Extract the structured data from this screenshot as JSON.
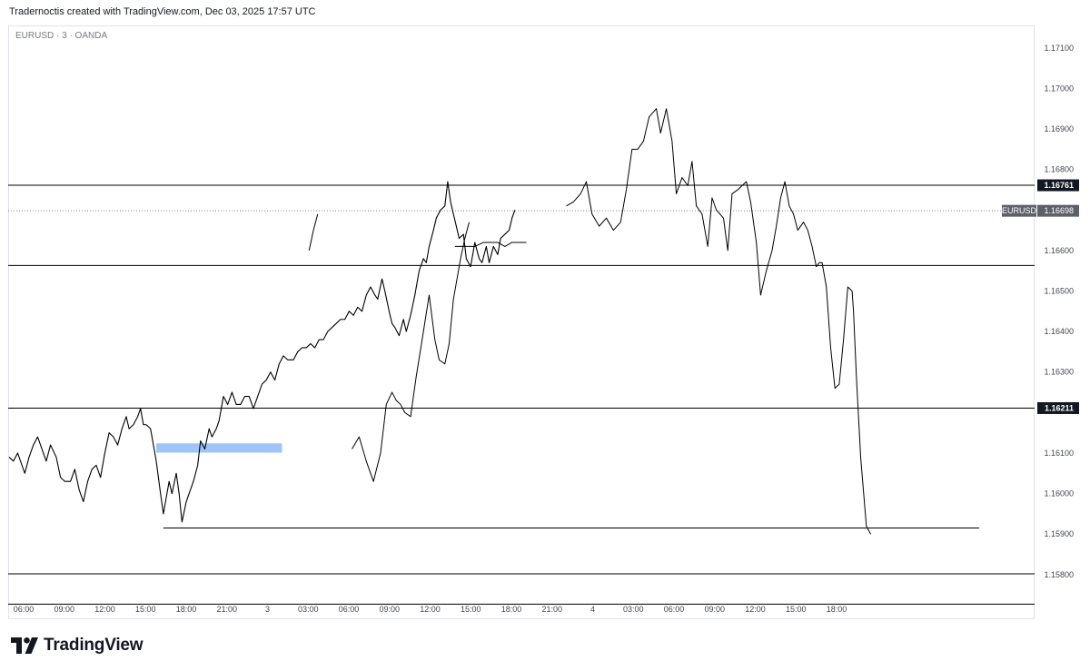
{
  "header": {
    "attribution": "Tradernoctis created with TradingView.com, Dec 03, 2025 17:57 UTC"
  },
  "symbol": {
    "label": "EURUSD · 3 · OANDA"
  },
  "brand": {
    "name": "TradingView"
  },
  "colors": {
    "price_line": "#000000",
    "level_line": "#000000",
    "highlight_box": "#9fc5f8",
    "label_bg": "#131722",
    "current_label_bg": "#5d606b"
  },
  "chart_data": {
    "type": "line",
    "title": "",
    "xlabel": "",
    "ylabel": "",
    "ylim": [
      1.1573,
      1.1713
    ],
    "grid": false,
    "x_tick_labels": [
      "06:00",
      "09:00",
      "12:00",
      "15:00",
      "18:00",
      "21:00",
      "3",
      "03:00",
      "06:00",
      "09:00",
      "12:00",
      "15:00",
      "18:00",
      "21:00",
      "4",
      "03:00",
      "06:00",
      "09:00",
      "12:00",
      "15:00",
      "18:00"
    ],
    "y_tick_labels": [
      "1.17100",
      "1.17000",
      "1.16900",
      "1.16800",
      "1.16600",
      "1.16500",
      "1.16400",
      "1.16300",
      "1.16100",
      "1.16000",
      "1.15900",
      "1.15800"
    ],
    "horizontal_levels": [
      {
        "value": 1.16761,
        "label": "1.16761"
      },
      {
        "value": 1.16563,
        "label": ""
      },
      {
        "value": 1.16211,
        "label": "1.16211"
      },
      {
        "value": 1.15802,
        "label": ""
      },
      {
        "value": 1.15727,
        "label": ""
      }
    ],
    "current_price": {
      "symbol": "EURUSD",
      "value": 1.16698,
      "label": "1.16698"
    },
    "price_series": [
      [
        0,
        1.1609
      ],
      [
        3,
        1.1608
      ],
      [
        6,
        1.161
      ],
      [
        9,
        1.1607
      ],
      [
        11,
        1.1605
      ],
      [
        14,
        1.1609
      ],
      [
        17,
        1.1612
      ],
      [
        20,
        1.1614
      ],
      [
        23,
        1.1611
      ],
      [
        26,
        1.1608
      ],
      [
        29,
        1.1612
      ],
      [
        33,
        1.1609
      ],
      [
        36,
        1.1604
      ],
      [
        39,
        1.1603
      ],
      [
        43,
        1.1603
      ],
      [
        46,
        1.1606
      ],
      [
        49,
        1.1601
      ],
      [
        52,
        1.1598
      ],
      [
        55,
        1.1603
      ],
      [
        58,
        1.1606
      ],
      [
        61,
        1.1607
      ],
      [
        64,
        1.1604
      ],
      [
        67,
        1.161
      ],
      [
        70,
        1.1615
      ],
      [
        73,
        1.1614
      ],
      [
        76,
        1.1612
      ],
      [
        79,
        1.1616
      ],
      [
        82,
        1.1619
      ],
      [
        84,
        1.1616
      ],
      [
        87,
        1.1617
      ],
      [
        90,
        1.1619
      ],
      [
        92,
        1.1621
      ],
      [
        94,
        1.1617
      ],
      [
        96,
        1.1617
      ],
      [
        99,
        1.1616
      ],
      [
        101,
        1.1612
      ],
      [
        103,
        1.1608
      ],
      [
        106,
        1.16
      ],
      [
        108,
        1.1595
      ],
      [
        110,
        1.1599
      ],
      [
        112,
        1.1603
      ],
      [
        114,
        1.16
      ],
      [
        117,
        1.1605
      ],
      [
        119,
        1.16
      ],
      [
        121,
        1.1593
      ],
      [
        124,
        1.1598
      ],
      [
        126,
        1.16
      ],
      [
        129,
        1.1603
      ],
      [
        132,
        1.1607
      ],
      [
        134,
        1.1613
      ],
      [
        137,
        1.1611
      ],
      [
        140,
        1.1616
      ],
      [
        142,
        1.1614
      ],
      [
        145,
        1.1616
      ],
      [
        147,
        1.1618
      ],
      [
        150,
        1.1624
      ],
      [
        153,
        1.1622
      ],
      [
        156,
        1.1625
      ],
      [
        159,
        1.1622
      ],
      [
        162,
        1.1622
      ],
      [
        165,
        1.1624
      ],
      [
        168,
        1.1624
      ],
      [
        171,
        1.1621
      ],
      [
        174,
        1.1624
      ],
      [
        177,
        1.1627
      ],
      [
        180,
        1.1628
      ],
      [
        183,
        1.163
      ],
      [
        186,
        1.1628
      ],
      [
        189,
        1.1632
      ],
      [
        192,
        1.1634
      ],
      [
        195,
        1.1633
      ],
      [
        199,
        1.1633
      ],
      [
        202,
        1.1635
      ],
      [
        205,
        1.1636
      ],
      [
        208,
        1.1636
      ],
      [
        211,
        1.1637
      ],
      [
        214,
        1.1636
      ],
      [
        217,
        1.1638
      ],
      [
        220,
        1.1638
      ],
      [
        223,
        1.164
      ],
      [
        226,
        1.1641
      ],
      [
        229,
        1.1642
      ],
      [
        232,
        1.1643
      ],
      [
        235,
        1.1643
      ],
      [
        238,
        1.1645
      ],
      [
        241,
        1.1644
      ],
      [
        244,
        1.1646
      ],
      [
        247,
        1.1645
      ],
      [
        250,
        1.1649
      ],
      [
        253,
        1.1651
      ],
      [
        256,
        1.1649
      ],
      [
        258,
        1.1648
      ],
      [
        261,
        1.1653
      ],
      [
        263,
        1.165
      ],
      [
        266,
        1.1645
      ],
      [
        268,
        1.1642
      ],
      [
        270,
        1.1641
      ],
      [
        273,
        1.1639
      ],
      [
        276,
        1.1643
      ],
      [
        278,
        1.164
      ],
      [
        281,
        1.1644
      ],
      [
        284,
        1.1649
      ],
      [
        287,
        1.1655
      ],
      [
        290,
        1.1658
      ],
      [
        292,
        1.1657
      ],
      [
        294,
        1.1661
      ],
      [
        297,
        1.1665
      ],
      [
        299,
        1.1668
      ],
      [
        302,
        1.167
      ],
      [
        305,
        1.1671
      ],
      [
        307,
        1.1677
      ],
      [
        309,
        1.1672
      ],
      [
        311,
        1.1669
      ],
      [
        313,
        1.1666
      ],
      [
        315,
        1.1663
      ],
      [
        318,
        1.1664
      ],
      [
        320,
        1.1658
      ],
      [
        323,
        1.1656
      ],
      [
        326,
        1.1662
      ],
      [
        329,
        1.1658
      ],
      [
        331,
        1.1657
      ],
      [
        334,
        1.1661
      ],
      [
        336,
        1.1657
      ],
      [
        339,
        1.1661
      ],
      [
        342,
        1.1659
      ],
      [
        344,
        1.1663
      ],
      [
        347,
        1.1664
      ],
      [
        350,
        1.1665
      ],
      [
        352,
        1.1668
      ],
      [
        354,
        1.167
      ]
    ],
    "projection_paths": [
      [
        [
          240,
          1.1611
        ],
        [
          245,
          1.1614
        ],
        [
          250,
          1.1608
        ],
        [
          255,
          1.1603
        ],
        [
          260,
          1.161
        ],
        [
          264,
          1.1622
        ],
        [
          268,
          1.1625
        ],
        [
          271,
          1.1623
        ],
        [
          274,
          1.1622
        ],
        [
          277,
          1.162
        ],
        [
          281,
          1.1619
        ],
        [
          285,
          1.1629
        ],
        [
          290,
          1.164
        ],
        [
          294,
          1.1649
        ],
        [
          298,
          1.1638
        ],
        [
          301,
          1.1633
        ],
        [
          305,
          1.1632
        ],
        [
          308,
          1.1637
        ],
        [
          311,
          1.1648
        ],
        [
          316,
          1.1658
        ],
        [
          319,
          1.1663
        ],
        [
          322,
          1.1667
        ]
      ],
      [
        [
          312,
          1.1661
        ],
        [
          320,
          1.1661
        ],
        [
          326,
          1.1661
        ],
        [
          332,
          1.1662
        ],
        [
          338,
          1.1662
        ],
        [
          342,
          1.1662
        ],
        [
          347,
          1.1661
        ],
        [
          352,
          1.1662
        ],
        [
          357,
          1.1662
        ],
        [
          362,
          1.1662
        ]
      ],
      [
        [
          210,
          1.166
        ],
        [
          213,
          1.1665
        ],
        [
          216,
          1.1669
        ]
      ],
      [
        [
          390,
          1.1671
        ],
        [
          395,
          1.1672
        ],
        [
          400,
          1.1674
        ],
        [
          404,
          1.1677
        ],
        [
          408,
          1.1669
        ],
        [
          413,
          1.1666
        ],
        [
          418,
          1.1668
        ],
        [
          423,
          1.1665
        ],
        [
          428,
          1.1667
        ],
        [
          432,
          1.1675
        ],
        [
          436,
          1.1685
        ],
        [
          440,
          1.1685
        ],
        [
          444,
          1.1687
        ],
        [
          448,
          1.1693
        ],
        [
          453,
          1.1695
        ],
        [
          456,
          1.1689
        ],
        [
          460,
          1.1695
        ],
        [
          464,
          1.1687
        ],
        [
          467,
          1.1674
        ],
        [
          471,
          1.1678
        ],
        [
          475,
          1.1676
        ],
        [
          478,
          1.1682
        ],
        [
          481,
          1.1671
        ],
        [
          485,
          1.1669
        ],
        [
          489,
          1.1661
        ],
        [
          492,
          1.1673
        ],
        [
          495,
          1.167
        ],
        [
          500,
          1.1668
        ],
        [
          503,
          1.166
        ],
        [
          506,
          1.1674
        ],
        [
          510,
          1.1675
        ],
        [
          513,
          1.1676
        ],
        [
          516,
          1.1677
        ],
        [
          519,
          1.1672
        ],
        [
          523,
          1.1662
        ],
        [
          526,
          1.1649
        ],
        [
          530,
          1.1655
        ],
        [
          534,
          1.166
        ],
        [
          537,
          1.1666
        ],
        [
          540,
          1.1673
        ],
        [
          543,
          1.1677
        ],
        [
          546,
          1.1671
        ],
        [
          549,
          1.1669
        ],
        [
          552,
          1.1665
        ],
        [
          556,
          1.1667
        ],
        [
          559,
          1.1665
        ],
        [
          562,
          1.1661
        ],
        [
          565,
          1.1656
        ],
        [
          567,
          1.1657
        ],
        [
          569,
          1.1657
        ],
        [
          572,
          1.1651
        ],
        [
          575,
          1.1636
        ],
        [
          578,
          1.1626
        ],
        [
          581,
          1.1627
        ],
        [
          584,
          1.1638
        ],
        [
          587,
          1.1651
        ],
        [
          590,
          1.165
        ],
        [
          591,
          1.1645
        ],
        [
          593,
          1.1629
        ],
        [
          596,
          1.1609
        ],
        [
          600,
          1.1592
        ],
        [
          603,
          1.159
        ]
      ]
    ],
    "bottom_level": {
      "from_x": 108,
      "to_x": 679,
      "value": 1.15915
    },
    "highlight_zone": {
      "from_x": 103,
      "to_x": 191,
      "top": 1.16124,
      "bottom": 1.16101
    }
  }
}
